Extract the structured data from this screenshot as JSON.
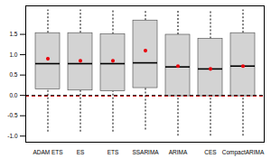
{
  "chart_data": {
    "type": "box",
    "categories": [
      "ADAM ETS",
      "ES",
      "ETS",
      "SSARIMA",
      "ARIMA",
      "CES",
      "CompactARIMA"
    ],
    "whisker_low": [
      -0.9,
      -0.9,
      -0.9,
      -0.85,
      -1.0,
      -1.0,
      -1.0
    ],
    "q1": [
      0.15,
      0.12,
      0.1,
      0.18,
      -0.02,
      -0.02,
      -0.02
    ],
    "median": [
      0.78,
      0.78,
      0.78,
      0.8,
      0.7,
      0.65,
      0.72
    ],
    "q3": [
      1.53,
      1.53,
      1.5,
      1.84,
      1.49,
      1.39,
      1.53
    ],
    "whisker_high": [
      2.1,
      2.1,
      2.1,
      2.1,
      2.1,
      2.1,
      2.1
    ],
    "means": [
      0.9,
      0.85,
      0.85,
      1.1,
      0.72,
      0.65,
      0.72
    ],
    "reference_line": 0,
    "color": "#d3d3d3",
    "ylim": [
      -1.15,
      2.2
    ],
    "yticks": [
      {
        "value": -1,
        "label": "-1.0"
      },
      {
        "value": -0.5,
        "label": "-0.5"
      },
      {
        "value": 0,
        "label": "0.0"
      },
      {
        "value": 0.5,
        "label": "0.5"
      },
      {
        "value": 1,
        "label": "1.0"
      },
      {
        "value": 1.5,
        "label": "1.5"
      }
    ],
    "grid": false
  }
}
